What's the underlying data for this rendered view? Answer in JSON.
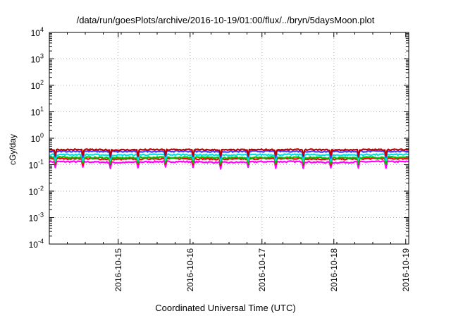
{
  "chart_data": {
    "type": "line",
    "title": "/data/run/goesPlots/archive/2016-10-19/01:00/flux/../bryn/5daysMoon.plot",
    "xlabel": "Coordinated Universal Time (UTC)",
    "ylabel": "cGy/day",
    "yscale": "log",
    "ylim": [
      0.0001,
      10000
    ],
    "y_ticks": [
      {
        "base": "10",
        "exp": "-4"
      },
      {
        "base": "10",
        "exp": "-3"
      },
      {
        "base": "10",
        "exp": "-2"
      },
      {
        "base": "10",
        "exp": "-1"
      },
      {
        "base": "10",
        "exp": "0"
      },
      {
        "base": "10",
        "exp": "1"
      },
      {
        "base": "10",
        "exp": "2"
      },
      {
        "base": "10",
        "exp": "3"
      },
      {
        "base": "10",
        "exp": "4"
      }
    ],
    "xlim": [
      "2016-10-14 01:00",
      "2016-10-19 01:00"
    ],
    "x_ticks": [
      "2016-10-15",
      "2016-10-16",
      "2016-10-17",
      "2016-10-18",
      "2016-10-19"
    ],
    "grid": true,
    "legend": "none",
    "series": [
      {
        "color": "#ff00ff",
        "x": [
          "2016-10-14 01:00",
          "2016-10-14 12:00",
          "2016-10-15 00:00",
          "2016-10-15 12:00",
          "2016-10-16 00:00",
          "2016-10-16 12:00",
          "2016-10-17 00:00",
          "2016-10-17 12:00",
          "2016-10-18 00:00",
          "2016-10-18 12:00",
          "2016-10-19 01:00"
        ],
        "values": [
          0.13,
          0.13,
          0.12,
          0.13,
          0.13,
          0.12,
          0.13,
          0.13,
          0.12,
          0.13,
          0.13
        ]
      },
      {
        "color": "#ff0000",
        "x": [
          "2016-10-14 01:00",
          "2016-10-14 12:00",
          "2016-10-15 00:00",
          "2016-10-15 12:00",
          "2016-10-16 00:00",
          "2016-10-16 12:00",
          "2016-10-17 00:00",
          "2016-10-17 12:00",
          "2016-10-18 00:00",
          "2016-10-18 12:00",
          "2016-10-19 01:00"
        ],
        "values": [
          0.17,
          0.17,
          0.16,
          0.17,
          0.17,
          0.16,
          0.17,
          0.17,
          0.16,
          0.17,
          0.17
        ]
      },
      {
        "color": "#00c000",
        "x": [
          "2016-10-14 01:00",
          "2016-10-14 12:00",
          "2016-10-15 00:00",
          "2016-10-15 12:00",
          "2016-10-16 00:00",
          "2016-10-16 12:00",
          "2016-10-17 00:00",
          "2016-10-17 12:00",
          "2016-10-18 00:00",
          "2016-10-18 12:00",
          "2016-10-19 01:00"
        ],
        "values": [
          0.19,
          0.19,
          0.18,
          0.19,
          0.19,
          0.18,
          0.19,
          0.19,
          0.18,
          0.19,
          0.19
        ]
      },
      {
        "color": "#00e0e0",
        "x": [
          "2016-10-14 01:00",
          "2016-10-14 12:00",
          "2016-10-15 00:00",
          "2016-10-15 12:00",
          "2016-10-16 00:00",
          "2016-10-16 12:00",
          "2016-10-17 00:00",
          "2016-10-17 12:00",
          "2016-10-18 00:00",
          "2016-10-18 12:00",
          "2016-10-19 01:00"
        ],
        "values": [
          0.24,
          0.24,
          0.23,
          0.24,
          0.24,
          0.23,
          0.24,
          0.24,
          0.23,
          0.24,
          0.24
        ]
      },
      {
        "color": "#4040ff",
        "x": [
          "2016-10-14 01:00",
          "2016-10-14 12:00",
          "2016-10-15 00:00",
          "2016-10-15 12:00",
          "2016-10-16 00:00",
          "2016-10-16 12:00",
          "2016-10-17 00:00",
          "2016-10-17 12:00",
          "2016-10-18 00:00",
          "2016-10-18 12:00",
          "2016-10-19 01:00"
        ],
        "values": [
          0.32,
          0.32,
          0.31,
          0.32,
          0.32,
          0.31,
          0.32,
          0.32,
          0.31,
          0.32,
          0.32
        ]
      },
      {
        "color": "#c00000",
        "x": [
          "2016-10-14 01:00",
          "2016-10-14 12:00",
          "2016-10-15 00:00",
          "2016-10-15 12:00",
          "2016-10-16 00:00",
          "2016-10-16 12:00",
          "2016-10-17 00:00",
          "2016-10-17 12:00",
          "2016-10-18 00:00",
          "2016-10-18 12:00",
          "2016-10-19 01:00"
        ],
        "values": [
          0.37,
          0.37,
          0.36,
          0.37,
          0.37,
          0.36,
          0.37,
          0.37,
          0.36,
          0.37,
          0.37
        ]
      }
    ]
  }
}
